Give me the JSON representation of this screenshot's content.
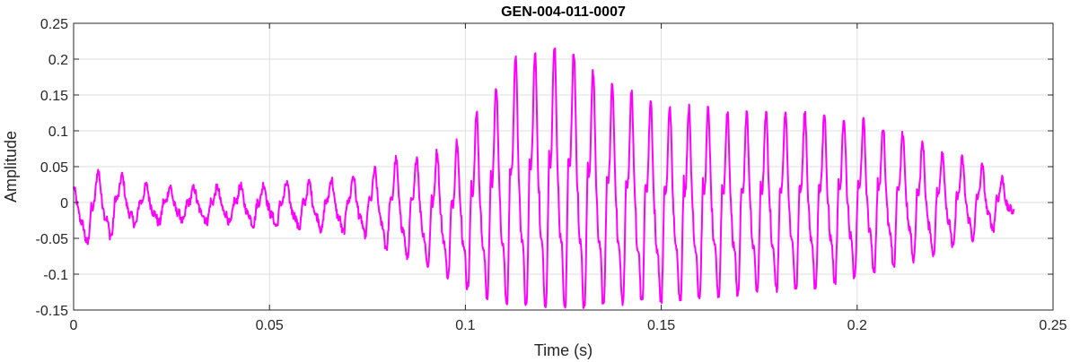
{
  "chart_data": {
    "type": "line",
    "title": "GEN-004-011-0007",
    "xlabel": "Time (s)",
    "ylabel": "Amplitude",
    "xlim": [
      0,
      0.25
    ],
    "ylim": [
      -0.15,
      0.25
    ],
    "xticks": [
      0,
      0.05,
      0.1,
      0.15,
      0.2,
      0.25
    ],
    "xtick_labels": [
      "0",
      "0.05",
      "0.1",
      "0.15",
      "0.2",
      "0.25"
    ],
    "yticks": [
      -0.15,
      -0.1,
      -0.05,
      0,
      0.05,
      0.1,
      0.15,
      0.2,
      0.25
    ],
    "ytick_labels": [
      "-0.15",
      "-0.1",
      "-0.05",
      "0",
      "0.05",
      "0.1",
      "0.15",
      "0.2",
      "0.25"
    ],
    "grid": true,
    "series": [
      {
        "color": "#ff00ff",
        "sample_rate_hz": 8000,
        "envelope": {
          "t": [
            0,
            0.004,
            0.008,
            0.015,
            0.03,
            0.06,
            0.075,
            0.082,
            0.09,
            0.097,
            0.105,
            0.113,
            0.12,
            0.125,
            0.135,
            0.15,
            0.17,
            0.19,
            0.2,
            0.21,
            0.22,
            0.232,
            0.238,
            0.24
          ],
          "max": [
            0.02,
            0.025,
            0.058,
            0.025,
            0.02,
            0.028,
            0.04,
            0.06,
            0.065,
            0.08,
            0.14,
            0.2,
            0.21,
            0.222,
            0.17,
            0.135,
            0.125,
            0.125,
            0.115,
            0.1,
            0.075,
            0.05,
            0.03,
            0.015
          ],
          "min": [
            -0.03,
            -0.06,
            -0.05,
            -0.03,
            -0.025,
            -0.035,
            -0.045,
            -0.07,
            -0.085,
            -0.105,
            -0.13,
            -0.14,
            -0.145,
            -0.145,
            -0.14,
            -0.135,
            -0.125,
            -0.115,
            -0.1,
            -0.085,
            -0.07,
            -0.045,
            -0.025,
            -0.01
          ]
        },
        "pitch_hz": {
          "t": [
            0,
            0.05,
            0.08,
            0.1,
            0.15,
            0.2,
            0.24
          ],
          "f": [
            160,
            170,
            185,
            200,
            205,
            200,
            195
          ]
        }
      }
    ]
  }
}
